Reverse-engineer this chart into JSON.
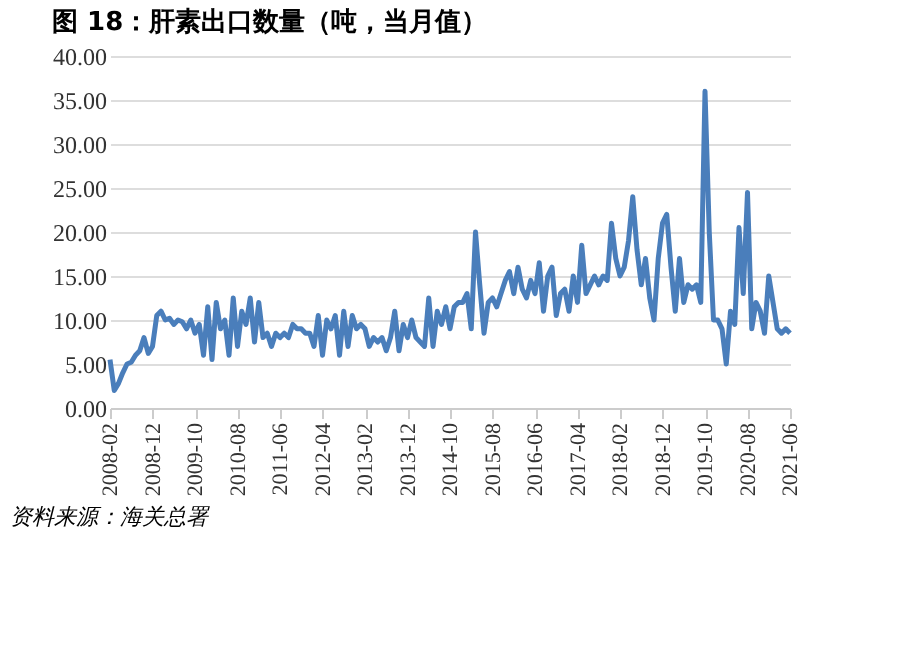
{
  "chart_data": {
    "type": "line",
    "title": "图 18：肝素出口数量（吨，当月值）",
    "categories": [
      "2008-02",
      null,
      null,
      null,
      null,
      null,
      null,
      null,
      null,
      null,
      "2008-12",
      null,
      null,
      null,
      null,
      null,
      null,
      null,
      null,
      null,
      "2009-10",
      null,
      null,
      null,
      null,
      null,
      null,
      null,
      null,
      null,
      "2010-08",
      null,
      null,
      null,
      null,
      null,
      null,
      null,
      null,
      null,
      "2011-06",
      null,
      null,
      null,
      null,
      null,
      null,
      null,
      null,
      null,
      "2012-04",
      null,
      null,
      null,
      null,
      null,
      null,
      null,
      null,
      null,
      "2013-02",
      null,
      null,
      null,
      null,
      null,
      null,
      null,
      null,
      null,
      "2013-12",
      null,
      null,
      null,
      null,
      null,
      null,
      null,
      null,
      null,
      "2014-10",
      null,
      null,
      null,
      null,
      null,
      null,
      null,
      null,
      null,
      "2015-08",
      null,
      null,
      null,
      null,
      null,
      null,
      null,
      null,
      null,
      "2016-06",
      null,
      null,
      null,
      null,
      null,
      null,
      null,
      null,
      null,
      "2017-04",
      null,
      null,
      null,
      null,
      null,
      null,
      null,
      null,
      null,
      "2018-02",
      null,
      null,
      null,
      null,
      null,
      null,
      null,
      null,
      null,
      "2018-12",
      null,
      null,
      null,
      null,
      null,
      null,
      null,
      null,
      null,
      "2019-10",
      null,
      null,
      null,
      null,
      null,
      null,
      null,
      null,
      null,
      "2020-08",
      null,
      null,
      null,
      null,
      null,
      null,
      null,
      null,
      null,
      "2021-06"
    ],
    "series": [
      {
        "color": "#4a7ebb",
        "values": [
          5.5,
          2.0,
          2.8,
          4.0,
          5.0,
          5.2,
          6.0,
          6.5,
          8.0,
          6.2,
          7.0,
          10.5,
          11.0,
          10.0,
          10.2,
          9.5,
          10.0,
          9.8,
          9.0,
          10.0,
          8.5,
          9.5,
          6.0,
          11.5,
          5.5,
          12.0,
          9.0,
          10.0,
          6.0,
          12.5,
          7.0,
          11.0,
          9.5,
          12.5,
          7.5,
          12.0,
          8.0,
          8.5,
          7.0,
          8.5,
          8.0,
          8.5,
          8.0,
          9.5,
          9.0,
          9.0,
          8.5,
          8.5,
          7.0,
          10.5,
          6.0,
          10.0,
          9.0,
          10.5,
          6.0,
          11.0,
          7.0,
          10.5,
          9.0,
          9.5,
          9.0,
          7.0,
          8.0,
          7.5,
          8.0,
          6.5,
          8.0,
          11.0,
          6.5,
          9.5,
          8.0,
          10.0,
          8.0,
          7.5,
          7.0,
          12.5,
          7.0,
          11.0,
          9.5,
          11.5,
          9.0,
          11.5,
          12.0,
          12.0,
          13.0,
          9.0,
          20.0,
          14.0,
          8.5,
          12.0,
          12.5,
          11.5,
          13.0,
          14.5,
          15.5,
          13.0,
          16.0,
          13.5,
          12.5,
          14.5,
          13.0,
          16.5,
          11.0,
          15.0,
          16.0,
          10.5,
          13.0,
          13.5,
          11.0,
          15.0,
          12.0,
          18.5,
          13.0,
          14.0,
          15.0,
          14.0,
          15.0,
          14.5,
          21.0,
          17.0,
          15.0,
          16.0,
          19.0,
          24.0,
          18.0,
          14.0,
          17.0,
          12.5,
          10.0,
          17.0,
          21.0,
          22.0,
          16.0,
          11.0,
          17.0,
          12.0,
          14.0,
          13.5,
          14.0,
          12.0,
          36.0,
          20.0,
          10.0,
          10.0,
          9.0,
          5.0,
          11.0,
          9.5,
          20.5,
          13.0,
          24.5,
          9.0,
          12.0,
          11.0,
          8.5,
          15.0,
          12.0,
          9.0,
          8.5,
          9.0,
          8.5
        ]
      }
    ],
    "ylim": [
      0,
      40
    ],
    "yticks": [
      {
        "value": 0,
        "label": "0.00"
      },
      {
        "value": 5,
        "label": "5.00"
      },
      {
        "value": 10,
        "label": "10.00"
      },
      {
        "value": 15,
        "label": "15.00"
      },
      {
        "value": 20,
        "label": "20.00"
      },
      {
        "value": 25,
        "label": "25.00"
      },
      {
        "value": 30,
        "label": "30.00"
      },
      {
        "value": 35,
        "label": "35.00"
      },
      {
        "value": 40,
        "label": "40.00"
      }
    ],
    "grid": "y",
    "marker": "none",
    "line_style": "solid",
    "annotations": [
      "资料来源：海关总署"
    ]
  }
}
